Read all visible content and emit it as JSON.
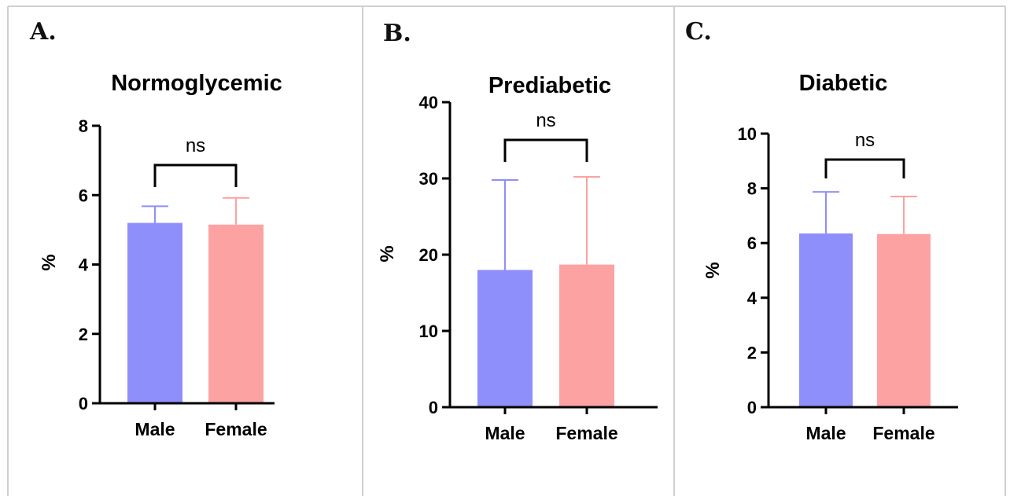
{
  "colors": {
    "male": "#8f8ffb",
    "female": "#fca2a2",
    "male_err": "#8f8ffb",
    "female_err": "#fca2a2",
    "axis": "#000000",
    "border": "#cfcfcf"
  },
  "chart_data": [
    {
      "type": "bar",
      "panel": "A.",
      "title": "Normoglycemic",
      "ylabel": "%",
      "categories": [
        "Male",
        "Female"
      ],
      "values": [
        5.2,
        5.15
      ],
      "errors": [
        0.48,
        0.77
      ],
      "ylim": [
        0,
        8
      ],
      "yticks": [
        0,
        2,
        4,
        6,
        8
      ],
      "significance": "ns",
      "grid": false,
      "legend": "none"
    },
    {
      "type": "bar",
      "panel": "B.",
      "title": "Prediabetic",
      "ylabel": "%",
      "categories": [
        "Male",
        "Female"
      ],
      "values": [
        18.0,
        18.7
      ],
      "errors": [
        11.8,
        11.5
      ],
      "ylim": [
        0,
        40
      ],
      "yticks": [
        0,
        10,
        20,
        30,
        40
      ],
      "significance": "ns",
      "grid": false,
      "legend": "none"
    },
    {
      "type": "bar",
      "panel": "C.",
      "title": "Diabetic",
      "ylabel": "%",
      "categories": [
        "Male",
        "Female"
      ],
      "values": [
        6.35,
        6.33
      ],
      "errors": [
        1.52,
        1.37
      ],
      "ylim": [
        0,
        10
      ],
      "yticks": [
        0,
        2,
        4,
        6,
        8,
        10
      ],
      "significance": "ns",
      "grid": false,
      "legend": "none"
    }
  ]
}
